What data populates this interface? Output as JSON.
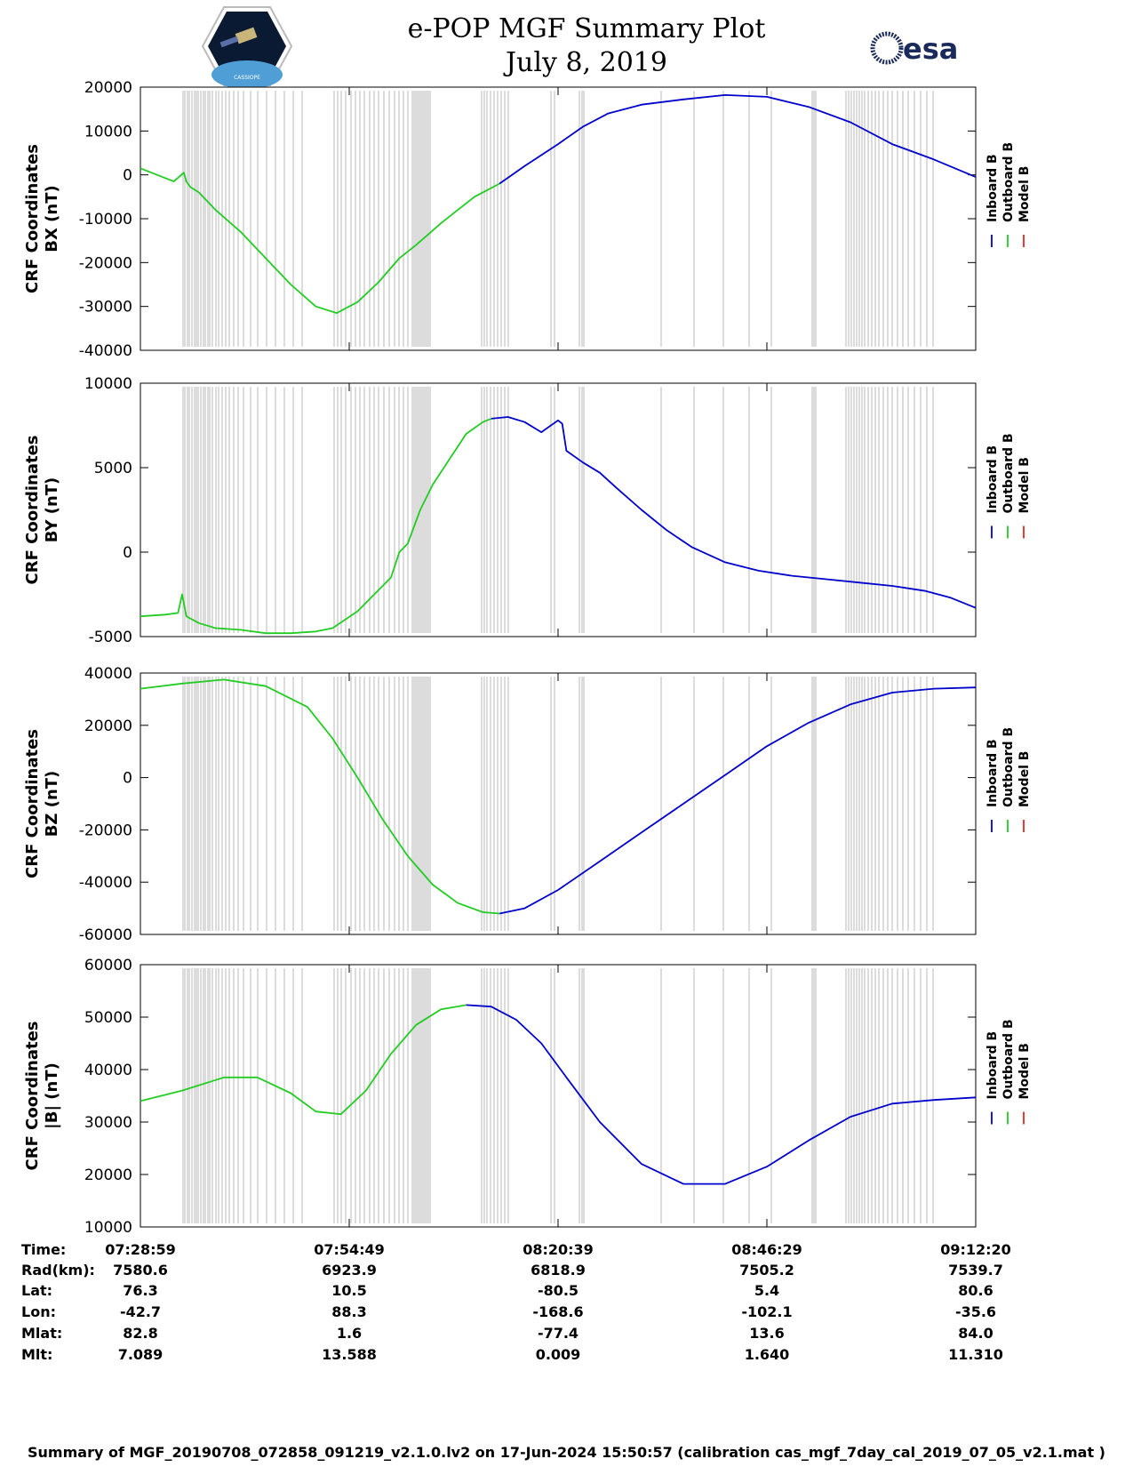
{
  "header": {
    "title": "e-POP MGF Summary Plot",
    "date": "July 8, 2019"
  },
  "logos": {
    "left": "cassiope-logo",
    "left_text": "CASSIOPE",
    "right": "esa-logo",
    "right_text": "esa"
  },
  "colors": {
    "inboard": "#0000cc",
    "outboard": "#22cc22",
    "model": "#ee2222",
    "data_gap": "#d4d4d4"
  },
  "chart_data": [
    {
      "type": "line",
      "title": "CRF Coordinates BX (nT)",
      "ylabel_lines": [
        "CRF Coordinates",
        "BX (nT)"
      ],
      "ylim": [
        -40000,
        20000
      ],
      "yticks": [
        -40000,
        -30000,
        -20000,
        -10000,
        0,
        10000,
        20000
      ],
      "ytick_labels": [
        "-40000",
        "-30000",
        "-20000",
        "-10000",
        "0",
        "10000",
        "20000"
      ],
      "legend": [
        "Inboard B",
        "Outboard B",
        "Model B"
      ],
      "series": [
        {
          "name": "Outboard B",
          "x": [
            0,
            0.04,
            0.052,
            0.055,
            0.06,
            0.07,
            0.09,
            0.12,
            0.15,
            0.18,
            0.21,
            0.235,
            0.26,
            0.285,
            0.31,
            0.33,
            0.345,
            0.36,
            0.38,
            0.4,
            0.415,
            0.43
          ],
          "values": [
            1500,
            -1500,
            500,
            -1500,
            -2800,
            -4000,
            -8000,
            -13000,
            -19000,
            -25000,
            -30000,
            -31500,
            -29000,
            -24500,
            -19000,
            -16000,
            -13500,
            -11000,
            -8000,
            -5000,
            -3500,
            -2000
          ]
        },
        {
          "name": "Inboard B",
          "x": [
            0.43,
            0.46,
            0.5,
            0.53,
            0.56,
            0.6,
            0.65,
            0.7,
            0.75,
            0.8,
            0.85,
            0.9,
            0.95,
            1.0
          ],
          "values": [
            -2000,
            2000,
            7000,
            11000,
            14000,
            16000,
            17200,
            18200,
            17800,
            15500,
            12000,
            7000,
            3500,
            -500
          ]
        }
      ]
    },
    {
      "type": "line",
      "title": "CRF Coordinates BY (nT)",
      "ylabel_lines": [
        "CRF Coordinates",
        "BY (nT)"
      ],
      "ylim": [
        -5000,
        10000
      ],
      "yticks": [
        -5000,
        0,
        5000,
        10000
      ],
      "ytick_labels": [
        "-5000",
        "0",
        "5000",
        "10000"
      ],
      "legend": [
        "Inboard B",
        "Outboard B",
        "Model B"
      ],
      "series": [
        {
          "name": "Outboard B",
          "x": [
            0,
            0.03,
            0.045,
            0.05,
            0.055,
            0.07,
            0.09,
            0.12,
            0.15,
            0.18,
            0.21,
            0.23,
            0.26,
            0.28,
            0.3,
            0.31,
            0.32,
            0.335,
            0.35,
            0.37,
            0.39,
            0.41,
            0.42
          ],
          "values": [
            -3800,
            -3700,
            -3600,
            -2500,
            -3800,
            -4200,
            -4500,
            -4600,
            -4800,
            -4800,
            -4700,
            -4500,
            -3500,
            -2500,
            -1500,
            0,
            500,
            2500,
            4000,
            5500,
            7000,
            7700,
            7900
          ]
        },
        {
          "name": "Inboard B",
          "x": [
            0.42,
            0.44,
            0.46,
            0.48,
            0.5,
            0.505,
            0.51,
            0.53,
            0.55,
            0.57,
            0.6,
            0.63,
            0.66,
            0.7,
            0.74,
            0.78,
            0.82,
            0.86,
            0.9,
            0.94,
            0.97,
            1.0
          ],
          "values": [
            7900,
            8000,
            7700,
            7100,
            7800,
            7600,
            6000,
            5300,
            4700,
            3800,
            2500,
            1300,
            300,
            -600,
            -1100,
            -1400,
            -1600,
            -1800,
            -2000,
            -2300,
            -2700,
            -3300
          ]
        }
      ]
    },
    {
      "type": "line",
      "title": "CRF Coordinates BZ (nT)",
      "ylabel_lines": [
        "CRF Coordinates",
        "BZ (nT)"
      ],
      "ylim": [
        -60000,
        40000
      ],
      "yticks": [
        -60000,
        -40000,
        -20000,
        0,
        20000,
        40000
      ],
      "ytick_labels": [
        "-60000",
        "-40000",
        "-20000",
        "0",
        "20000",
        "40000"
      ],
      "legend": [
        "Inboard B",
        "Outboard B",
        "Model B"
      ],
      "series": [
        {
          "name": "Outboard B",
          "x": [
            0,
            0.05,
            0.1,
            0.15,
            0.2,
            0.23,
            0.26,
            0.29,
            0.32,
            0.35,
            0.38,
            0.41,
            0.43
          ],
          "values": [
            34000,
            36000,
            37500,
            35000,
            27000,
            15000,
            0,
            -16000,
            -30000,
            -41000,
            -48000,
            -51500,
            -52000
          ]
        },
        {
          "name": "Inboard B",
          "x": [
            0.43,
            0.46,
            0.5,
            0.55,
            0.6,
            0.65,
            0.7,
            0.75,
            0.8,
            0.85,
            0.9,
            0.95,
            1.0
          ],
          "values": [
            -52000,
            -50000,
            -43000,
            -32000,
            -21000,
            -10000,
            1000,
            12000,
            21000,
            28000,
            32500,
            34000,
            34500
          ]
        }
      ]
    },
    {
      "type": "line",
      "title": "CRF Coordinates |B| (nT)",
      "ylabel_lines": [
        "CRF Coordinates",
        "|B| (nT)"
      ],
      "ylim": [
        10000,
        60000
      ],
      "yticks": [
        10000,
        20000,
        30000,
        40000,
        50000,
        60000
      ],
      "ytick_labels": [
        "10000",
        "20000",
        "30000",
        "40000",
        "50000",
        "60000"
      ],
      "legend": [
        "Inboard B",
        "Outboard B",
        "Model B"
      ],
      "series": [
        {
          "name": "Outboard B",
          "x": [
            0,
            0.05,
            0.1,
            0.14,
            0.18,
            0.21,
            0.24,
            0.27,
            0.3,
            0.33,
            0.36,
            0.39
          ],
          "values": [
            34000,
            36000,
            38500,
            38500,
            35500,
            32000,
            31500,
            36000,
            43000,
            48500,
            51500,
            52300
          ]
        },
        {
          "name": "Inboard B",
          "x": [
            0.39,
            0.42,
            0.45,
            0.48,
            0.51,
            0.55,
            0.6,
            0.65,
            0.7,
            0.75,
            0.8,
            0.85,
            0.9,
            0.95,
            1.0
          ],
          "values": [
            52300,
            52000,
            49500,
            45000,
            38500,
            30000,
            22000,
            18200,
            18200,
            21500,
            26500,
            31000,
            33500,
            34200,
            34700
          ]
        }
      ]
    }
  ],
  "x_axis": {
    "ticks": [
      0,
      0.25,
      0.5,
      0.75,
      1.0
    ]
  },
  "info_table": {
    "labels": [
      "Time:",
      "Rad(km):",
      "Lat:",
      "Lon:",
      "Mlat:",
      "Mlt:"
    ],
    "columns": [
      [
        "07:28:59",
        "7580.6",
        "76.3",
        "-42.7",
        "82.8",
        "7.089"
      ],
      [
        "07:54:49",
        "6923.9",
        "10.5",
        "88.3",
        "1.6",
        "13.588"
      ],
      [
        "08:20:39",
        "6818.9",
        "-80.5",
        "-168.6",
        "-77.4",
        "0.009"
      ],
      [
        "08:46:29",
        "7505.2",
        "5.4",
        "-102.1",
        "13.6",
        "1.640"
      ],
      [
        "09:12:20",
        "7539.7",
        "80.6",
        "-35.6",
        "84.0",
        "11.310"
      ]
    ]
  },
  "footer": "Summary of MGF_20190708_072858_091219_v2.1.0.lv2 on 17-Jun-2024 15:50:57 (calibration cas_mgf_7day_cal_2019_07_05_v2.1.mat )"
}
